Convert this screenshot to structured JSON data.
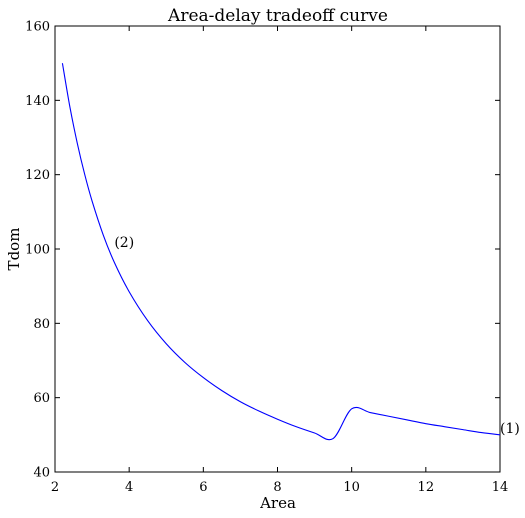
{
  "chart_data": {
    "type": "line",
    "title": "Area-delay tradeoff curve",
    "xlabel": "Area",
    "ylabel": "Tdom",
    "xlim": [
      2,
      14
    ],
    "ylim": [
      40,
      160
    ],
    "xticks": [
      2,
      4,
      6,
      8,
      10,
      12,
      14
    ],
    "yticks": [
      40,
      60,
      80,
      100,
      120,
      140,
      160
    ],
    "grid": false,
    "series": [
      {
        "color": "#0000ff",
        "x": [
          2.2,
          2.4,
          2.6,
          2.8,
          3.0,
          3.3,
          3.6,
          4.0,
          4.5,
          5.0,
          5.5,
          6.0,
          6.5,
          7.0,
          7.5,
          8.0,
          8.5,
          9.0,
          9.5,
          10.0,
          10.5,
          11.0,
          11.5,
          12.0,
          12.5,
          13.0,
          13.5,
          14.0
        ],
        "y": [
          150,
          138.3,
          128.5,
          120.1,
          112.9,
          103.8,
          96.4,
          88.5,
          80.7,
          74.5,
          69.5,
          65.4,
          61.9,
          58.9,
          56.4,
          54.2,
          52.2,
          50.5,
          49.0,
          57.0,
          56.0,
          55.0,
          54.0,
          53.0,
          52.2,
          51.4,
          50.6,
          50.0
        ]
      }
    ],
    "annotations": [
      {
        "text": "(2)",
        "x": 3.6,
        "y": 100
      },
      {
        "text": "(1)",
        "x": 14.0,
        "y": 50
      }
    ]
  }
}
